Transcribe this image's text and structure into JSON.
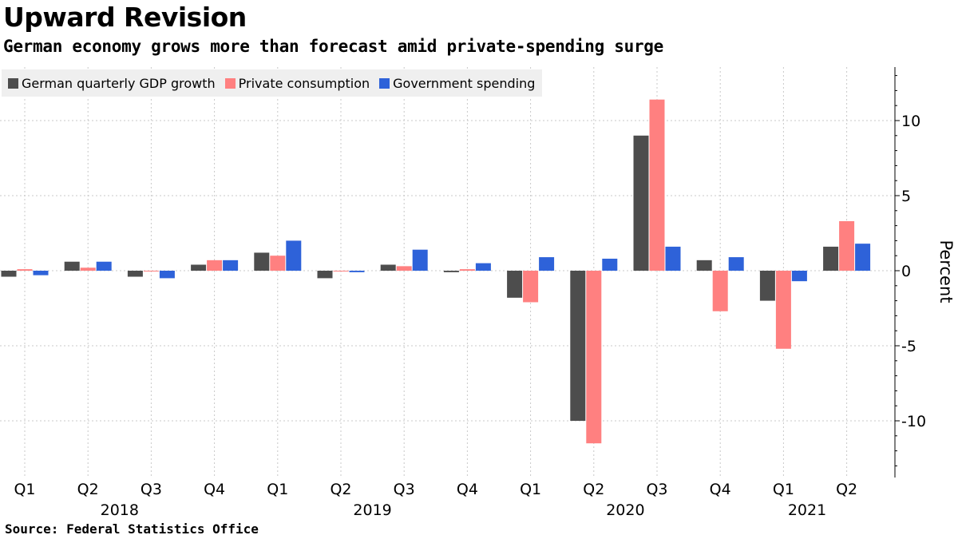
{
  "title": "Upward Revision",
  "subtitle": "German economy grows more than forecast amid private-spending surge",
  "source": "Source: Federal Statistics Office",
  "chart_data": {
    "type": "bar",
    "categories": [
      "Q1",
      "Q2",
      "Q3",
      "Q4",
      "Q1",
      "Q2",
      "Q3",
      "Q4",
      "Q1",
      "Q2",
      "Q3",
      "Q4",
      "Q1",
      "Q2"
    ],
    "years": [
      {
        "label": "2018",
        "from": 0,
        "to": 3
      },
      {
        "label": "2019",
        "from": 4,
        "to": 7
      },
      {
        "label": "2020",
        "from": 8,
        "to": 11
      },
      {
        "label": "2021",
        "from": 12,
        "to": 13
      }
    ],
    "series": [
      {
        "name": "German quarterly GDP growth",
        "color": "#4d4d4d",
        "values": [
          -0.4,
          0.6,
          -0.4,
          0.4,
          1.2,
          -0.5,
          0.4,
          -0.1,
          -1.8,
          -10.0,
          9.0,
          0.7,
          -2.0,
          1.6
        ]
      },
      {
        "name": "Private consumption",
        "color": "#ff8080",
        "values": [
          0.1,
          0.2,
          0.0,
          0.7,
          1.0,
          0.0,
          0.3,
          0.1,
          -2.1,
          -11.5,
          11.4,
          -2.7,
          -5.2,
          3.3
        ]
      },
      {
        "name": "Government spending",
        "color": "#2e62d9",
        "values": [
          -0.3,
          0.6,
          -0.5,
          0.7,
          2.0,
          -0.1,
          1.4,
          0.5,
          0.9,
          0.8,
          1.6,
          0.9,
          -0.7,
          1.8
        ]
      }
    ],
    "ylabel": "Percent",
    "yticks": [
      10,
      5,
      0,
      -5,
      -10
    ],
    "ylim": [
      -13.8,
      13.5
    ],
    "y_axis_position": "right",
    "legend_position": "top-left",
    "grid": true
  }
}
